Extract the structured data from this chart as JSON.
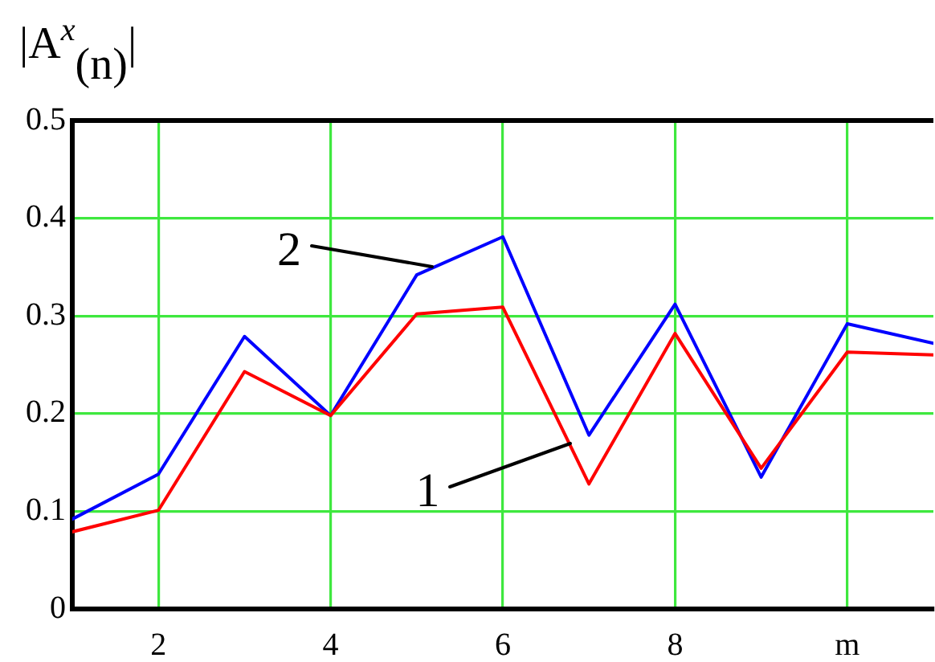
{
  "chart_data": {
    "type": "line",
    "ylabel": "|A$^{x}$$_{(n)}$|",
    "x": [
      1,
      2,
      3,
      4,
      5,
      6,
      7,
      8,
      9,
      10,
      11
    ],
    "series": [
      {
        "color": "#ff0000",
        "values": [
          0.079,
          0.101,
          0.243,
          0.198,
          0.302,
          0.309,
          0.128,
          0.282,
          0.144,
          0.263,
          0.26
        ]
      },
      {
        "color": "#0000ff",
        "values": [
          0.092,
          0.138,
          0.279,
          0.198,
          0.342,
          0.381,
          0.178,
          0.312,
          0.135,
          0.292,
          0.272
        ]
      }
    ],
    "xlim": [
      1,
      11
    ],
    "xticks": [
      2,
      4,
      6,
      8,
      {
        "value": 10,
        "label": "m"
      }
    ],
    "ylim": [
      0,
      0.5
    ],
    "yticks": [
      0,
      0.1,
      0.2,
      0.3,
      0.4,
      0.5
    ],
    "grid": true,
    "annotations": [
      {
        "text": "2",
        "x": 5.17,
        "y": 0.35
      },
      {
        "text": "1",
        "x": 6.78,
        "y": 0.17
      }
    ]
  }
}
